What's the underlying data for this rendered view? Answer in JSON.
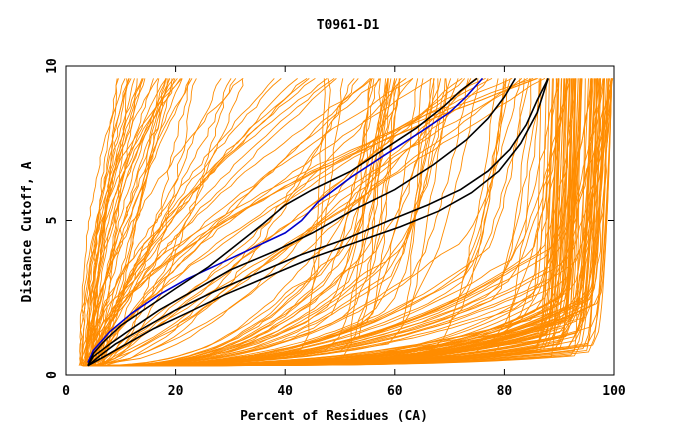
{
  "chart_data": {
    "type": "line",
    "title": "T0961-D1",
    "xlabel": "Percent of Residues (CA)",
    "ylabel": "Distance Cutoff, A",
    "xlim": [
      0,
      100
    ],
    "ylim": [
      0,
      10
    ],
    "x_ticks": [
      "0",
      "20",
      "40",
      "60",
      "80",
      "100"
    ],
    "y_ticks": [
      "0",
      "5",
      "10"
    ],
    "grid": false,
    "colors": {
      "background_models": "#ff8c00",
      "highlight_blue": "#0000cc",
      "highlight_black": "#000000"
    },
    "highlighted_series": [
      {
        "color": "#0000cc",
        "x": [
          4,
          5,
          8,
          12,
          17,
          22,
          28,
          34,
          40,
          43,
          46,
          52,
          58,
          65,
          70,
          73,
          76
        ],
        "y": [
          0.4,
          0.8,
          1.4,
          2.0,
          2.6,
          3.1,
          3.6,
          4.1,
          4.6,
          5.0,
          5.6,
          6.4,
          7.1,
          7.9,
          8.5,
          9.0,
          9.6
        ]
      },
      {
        "color": "#000000",
        "x": [
          4,
          5,
          7,
          10,
          15,
          20,
          26,
          31,
          36,
          40,
          45,
          52,
          58,
          64,
          69,
          72,
          75
        ],
        "y": [
          0.3,
          0.7,
          1.1,
          1.6,
          2.2,
          2.8,
          3.5,
          4.2,
          4.9,
          5.5,
          6.0,
          6.6,
          7.3,
          8.0,
          8.7,
          9.2,
          9.6
        ]
      },
      {
        "color": "#000000",
        "x": [
          4,
          5,
          8,
          12,
          17,
          23,
          30,
          38,
          45,
          52,
          60,
          67,
          73,
          77,
          80,
          82
        ],
        "y": [
          0.3,
          0.6,
          1.0,
          1.5,
          2.1,
          2.7,
          3.4,
          4.0,
          4.6,
          5.3,
          6.0,
          6.8,
          7.6,
          8.3,
          9.0,
          9.6
        ]
      },
      {
        "color": "#000000",
        "x": [
          4,
          6,
          9,
          14,
          20,
          27,
          35,
          43,
          51,
          59,
          66,
          72,
          77,
          81,
          84,
          86,
          88
        ],
        "y": [
          0.3,
          0.6,
          1.0,
          1.5,
          2.1,
          2.7,
          3.3,
          3.9,
          4.4,
          5.0,
          5.5,
          6.0,
          6.6,
          7.3,
          8.1,
          8.9,
          9.6
        ]
      },
      {
        "color": "#000000",
        "x": [
          4,
          7,
          11,
          16,
          22,
          29,
          37,
          45,
          53,
          61,
          68,
          74,
          79,
          83,
          86,
          88
        ],
        "y": [
          0.3,
          0.6,
          1.0,
          1.5,
          2.0,
          2.6,
          3.2,
          3.8,
          4.3,
          4.8,
          5.3,
          5.9,
          6.6,
          7.5,
          8.5,
          9.6
        ]
      }
    ]
  }
}
